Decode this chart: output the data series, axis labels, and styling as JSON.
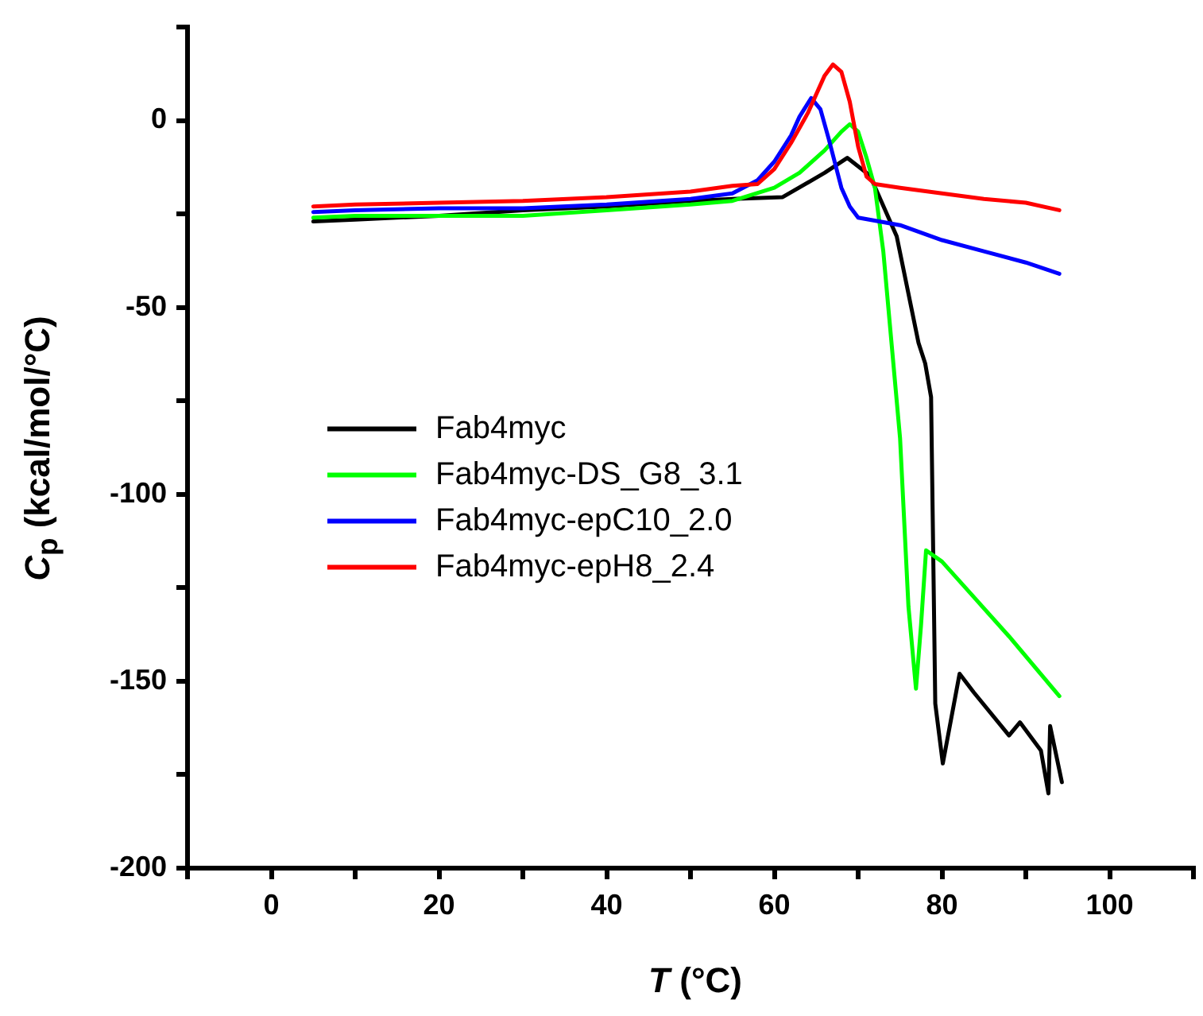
{
  "chart_data": {
    "type": "line",
    "xlabel": "T (°C)",
    "ylabel": "C$_{p}$ (kcal/mol/°C)",
    "xlim": [
      -10,
      110
    ],
    "xticks": [
      {
        "value": -10,
        "label": null
      },
      0,
      {
        "value": 10,
        "label": null
      },
      20,
      {
        "value": 30,
        "label": null
      },
      40,
      {
        "value": 50,
        "label": null
      },
      60,
      {
        "value": 70,
        "label": null
      },
      80,
      {
        "value": 90,
        "label": null
      },
      100,
      {
        "value": 110,
        "label": null
      }
    ],
    "ylim": [
      -200,
      25
    ],
    "yticks": [
      -200,
      {
        "value": -175,
        "label": null
      },
      -150,
      {
        "value": -125,
        "label": null
      },
      -100,
      {
        "value": -75,
        "label": null
      },
      -50,
      {
        "value": -25,
        "label": null
      },
      0,
      {
        "value": 25,
        "label": null
      }
    ],
    "grid": false,
    "legend": "center left",
    "marker": "none",
    "line_style": "solid",
    "series": [
      {
        "name": "Fab4myc",
        "color": "#000000",
        "x": [
          5,
          10,
          20,
          30,
          40,
          50,
          55,
          61,
          66,
          68.7,
          71.4,
          74.6,
          77.2,
          78,
          78.7,
          79.2,
          80.1,
          82.1,
          83.8,
          88,
          89.3,
          91.8,
          92.7,
          92.9,
          94.3
        ],
        "values": [
          -27,
          -26.5,
          -25.5,
          -24,
          -23,
          -21.5,
          -21,
          -20.5,
          -14,
          -10,
          -14.7,
          -31,
          -59.5,
          -65,
          -74,
          -156,
          -172,
          -148,
          -153,
          -164.5,
          -161,
          -168.5,
          -180,
          -162,
          -177
        ]
      },
      {
        "name": "Fab4myc-DS_G8_3.1",
        "color": "#00ff00",
        "x": [
          5,
          10,
          20,
          30,
          40,
          50,
          55,
          60,
          63,
          66,
          68,
          69,
          70,
          71,
          72,
          73,
          74,
          75,
          76,
          76.9,
          77.5,
          78.1,
          80,
          84,
          88,
          94
        ],
        "values": [
          -26,
          -25.5,
          -25.5,
          -25.5,
          -24,
          -22.5,
          -21.5,
          -18,
          -14,
          -8,
          -3,
          -1,
          -3,
          -10,
          -18,
          -35,
          -60,
          -85,
          -130,
          -152,
          -135,
          -115,
          -118,
          -128,
          -138,
          -154
        ]
      },
      {
        "name": "Fab4myc-epC10_2.0",
        "color": "#0000ff",
        "x": [
          5,
          10,
          20,
          30,
          40,
          50,
          55,
          58,
          60,
          62,
          63,
          64.4,
          65.5,
          66.5,
          68,
          69,
          70,
          75,
          80,
          85,
          90,
          94
        ],
        "values": [
          -24.5,
          -24,
          -23.5,
          -23.5,
          -22.5,
          -21,
          -19.5,
          -16,
          -11,
          -4,
          1,
          6,
          3,
          -5,
          -18,
          -23,
          -26,
          -28,
          -32,
          -35,
          -38,
          -41
        ]
      },
      {
        "name": "Fab4myc-epH8_2.4",
        "color": "#ff0000",
        "x": [
          5,
          10,
          20,
          30,
          40,
          50,
          55,
          58,
          60,
          62,
          64,
          66,
          67,
          68,
          69,
          70,
          71,
          72,
          75,
          80,
          85,
          90,
          94
        ],
        "values": [
          -23,
          -22.5,
          -22,
          -21.5,
          -20.5,
          -19,
          -17.5,
          -17,
          -13,
          -6,
          2,
          12,
          15,
          13,
          5,
          -7,
          -15,
          -17,
          -18,
          -19.5,
          -21,
          -22,
          -24
        ]
      }
    ]
  }
}
